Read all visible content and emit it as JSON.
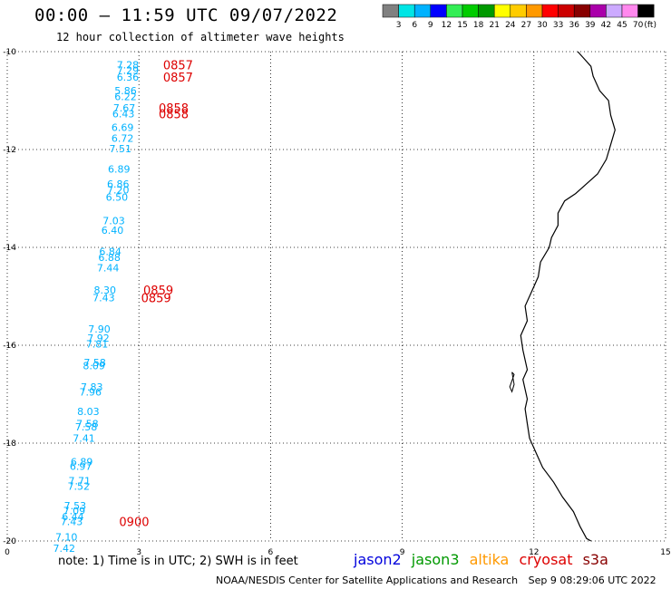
{
  "header": {
    "title": "00:00 – 11:59 UTC 09/07/2022",
    "subtitle": "12 hour collection of altimeter wave heights"
  },
  "legend": {
    "unit": "(ft)",
    "bins": [
      {
        "label": "3",
        "color": "#808080"
      },
      {
        "label": "6",
        "color": "#00e5e5"
      },
      {
        "label": "9",
        "color": "#00b2ff"
      },
      {
        "label": "12",
        "color": "#0000ff"
      },
      {
        "label": "15",
        "color": "#33ee55"
      },
      {
        "label": "18",
        "color": "#00cc00"
      },
      {
        "label": "21",
        "color": "#009900"
      },
      {
        "label": "24",
        "color": "#ffff00"
      },
      {
        "label": "27",
        "color": "#ffcc00"
      },
      {
        "label": "30",
        "color": "#ff9900"
      },
      {
        "label": "33",
        "color": "#ff0000"
      },
      {
        "label": "36",
        "color": "#cc0000"
      },
      {
        "label": "39",
        "color": "#880000"
      },
      {
        "label": "42",
        "color": "#aa00aa"
      },
      {
        "label": "45",
        "color": "#ccaaff"
      },
      {
        "label": "70",
        "color": "#ff88ee"
      },
      {
        "label": "",
        "color": "#000000"
      }
    ]
  },
  "axes": {
    "lon_min": 0,
    "lon_max": 15,
    "lat_min": -20,
    "lat_max": -10,
    "x_ticks": [
      "0",
      "3",
      "6",
      "9",
      "12",
      "15"
    ],
    "y_ticks": [
      "-10",
      "-12",
      "-14",
      "-16",
      "-18",
      "-20"
    ],
    "grid": true
  },
  "observations": [
    {
      "lon": 3.0,
      "lat": -10.27,
      "swh": "7.28"
    },
    {
      "lon": 3.0,
      "lat": -10.38,
      "swh": "7.29"
    },
    {
      "lon": 3.0,
      "lat": -10.52,
      "swh": "6.36"
    },
    {
      "lon": 2.95,
      "lat": -10.8,
      "swh": "5.86"
    },
    {
      "lon": 2.95,
      "lat": -10.92,
      "swh": "6.22"
    },
    {
      "lon": 2.92,
      "lat": -11.15,
      "swh": "7.67"
    },
    {
      "lon": 2.9,
      "lat": -11.27,
      "swh": "6.43"
    },
    {
      "lon": 2.88,
      "lat": -11.55,
      "swh": "6.69"
    },
    {
      "lon": 2.88,
      "lat": -11.77,
      "swh": "6.72"
    },
    {
      "lon": 2.83,
      "lat": -11.98,
      "swh": "7.51"
    },
    {
      "lon": 2.8,
      "lat": -12.4,
      "swh": "6.89"
    },
    {
      "lon": 2.78,
      "lat": -12.7,
      "swh": "6.86"
    },
    {
      "lon": 2.78,
      "lat": -12.82,
      "swh": "7.20"
    },
    {
      "lon": 2.75,
      "lat": -12.97,
      "swh": "6.50"
    },
    {
      "lon": 2.68,
      "lat": -13.45,
      "swh": "7.03"
    },
    {
      "lon": 2.65,
      "lat": -13.65,
      "swh": "6.40"
    },
    {
      "lon": 2.6,
      "lat": -14.08,
      "swh": "6.84"
    },
    {
      "lon": 2.58,
      "lat": -14.2,
      "swh": "6.88"
    },
    {
      "lon": 2.55,
      "lat": -14.42,
      "swh": "7.44"
    },
    {
      "lon": 2.48,
      "lat": -14.87,
      "swh": "8.30"
    },
    {
      "lon": 2.45,
      "lat": -15.03,
      "swh": "7.43"
    },
    {
      "lon": 2.35,
      "lat": -15.67,
      "swh": "7.90"
    },
    {
      "lon": 2.33,
      "lat": -15.85,
      "swh": "7.92"
    },
    {
      "lon": 2.3,
      "lat": -15.97,
      "swh": "7.81"
    },
    {
      "lon": 2.25,
      "lat": -16.35,
      "swh": "7.58"
    },
    {
      "lon": 2.23,
      "lat": -16.42,
      "swh": "8.09"
    },
    {
      "lon": 2.18,
      "lat": -16.85,
      "swh": "7.83"
    },
    {
      "lon": 2.15,
      "lat": -16.95,
      "swh": "7.96"
    },
    {
      "lon": 2.1,
      "lat": -17.35,
      "swh": "8.03"
    },
    {
      "lon": 2.08,
      "lat": -17.6,
      "swh": "7.58"
    },
    {
      "lon": 2.05,
      "lat": -17.67,
      "swh": "7.58"
    },
    {
      "lon": 2.0,
      "lat": -17.9,
      "swh": "7.41"
    },
    {
      "lon": 1.95,
      "lat": -18.38,
      "swh": "6.89"
    },
    {
      "lon": 1.93,
      "lat": -18.47,
      "swh": "6.97"
    },
    {
      "lon": 1.9,
      "lat": -18.77,
      "swh": "7.71"
    },
    {
      "lon": 1.88,
      "lat": -18.88,
      "swh": "7.52"
    },
    {
      "lon": 1.8,
      "lat": -19.28,
      "swh": "7.53"
    },
    {
      "lon": 1.78,
      "lat": -19.38,
      "swh": "7.09"
    },
    {
      "lon": 1.75,
      "lat": -19.5,
      "swh": "6.44"
    },
    {
      "lon": 1.72,
      "lat": -19.6,
      "swh": "7.43"
    },
    {
      "lon": 1.6,
      "lat": -19.92,
      "swh": "7.10"
    },
    {
      "lon": 1.55,
      "lat": -20.15,
      "swh": "7.42"
    }
  ],
  "time_labels": [
    {
      "lon": 3.55,
      "lat": -10.27,
      "text": "0857"
    },
    {
      "lon": 3.55,
      "lat": -10.52,
      "text": "0857"
    },
    {
      "lon": 3.45,
      "lat": -11.15,
      "text": "0858"
    },
    {
      "lon": 3.45,
      "lat": -11.27,
      "text": "0858"
    },
    {
      "lon": 3.1,
      "lat": -14.87,
      "text": "0859"
    },
    {
      "lon": 3.05,
      "lat": -15.03,
      "text": "0859"
    },
    {
      "lon": 2.55,
      "lat": -19.6,
      "text": "0900"
    }
  ],
  "colors": {
    "swh_text": "#00b2ff",
    "time_text": "#dd0000",
    "grid": "#000000",
    "coast": "#000000"
  },
  "coastline": [
    [
      13.0,
      -10.0
    ],
    [
      13.15,
      -10.15
    ],
    [
      13.3,
      -10.3
    ],
    [
      13.35,
      -10.5
    ],
    [
      13.5,
      -10.8
    ],
    [
      13.7,
      -11.0
    ],
    [
      13.75,
      -11.3
    ],
    [
      13.85,
      -11.6
    ],
    [
      13.75,
      -11.9
    ],
    [
      13.65,
      -12.2
    ],
    [
      13.45,
      -12.5
    ],
    [
      13.2,
      -12.7
    ],
    [
      12.95,
      -12.9
    ],
    [
      12.7,
      -13.05
    ],
    [
      12.55,
      -13.3
    ],
    [
      12.55,
      -13.55
    ],
    [
      12.4,
      -13.8
    ],
    [
      12.35,
      -14.0
    ],
    [
      12.15,
      -14.3
    ],
    [
      12.1,
      -14.6
    ],
    [
      11.95,
      -14.9
    ],
    [
      11.8,
      -15.2
    ],
    [
      11.85,
      -15.5
    ],
    [
      11.7,
      -15.8
    ],
    [
      11.75,
      -16.1
    ],
    [
      11.8,
      -16.3
    ],
    [
      11.85,
      -16.5
    ],
    [
      11.75,
      -16.7
    ],
    [
      11.8,
      -16.9
    ],
    [
      11.85,
      -17.1
    ],
    [
      11.8,
      -17.3
    ],
    [
      11.85,
      -17.6
    ],
    [
      11.9,
      -17.9
    ],
    [
      12.05,
      -18.2
    ],
    [
      12.2,
      -18.5
    ],
    [
      12.45,
      -18.8
    ],
    [
      12.65,
      -19.1
    ],
    [
      12.9,
      -19.4
    ],
    [
      13.05,
      -19.7
    ],
    [
      13.2,
      -19.95
    ],
    [
      13.3,
      -20.0
    ]
  ],
  "island": [
    [
      11.5,
      -16.55
    ],
    [
      11.55,
      -16.6
    ],
    [
      11.45,
      -16.85
    ],
    [
      11.5,
      -16.95
    ],
    [
      11.55,
      -16.8
    ],
    [
      11.5,
      -16.55
    ]
  ],
  "footer": {
    "note": "note: 1) Time is in UTC; 2) SWH is in feet",
    "satellites": [
      {
        "name": "jason2",
        "color": "#0000dd"
      },
      {
        "name": "jason3",
        "color": "#009900"
      },
      {
        "name": "altika",
        "color": "#ff9900"
      },
      {
        "name": "cryosat",
        "color": "#dd0000"
      },
      {
        "name": "s3a",
        "color": "#880000"
      }
    ],
    "credit": "NOAA/NESDIS Center for Satellite Applications and Research",
    "timestamp": "Sep  9 08:29:06 UTC 2022"
  }
}
